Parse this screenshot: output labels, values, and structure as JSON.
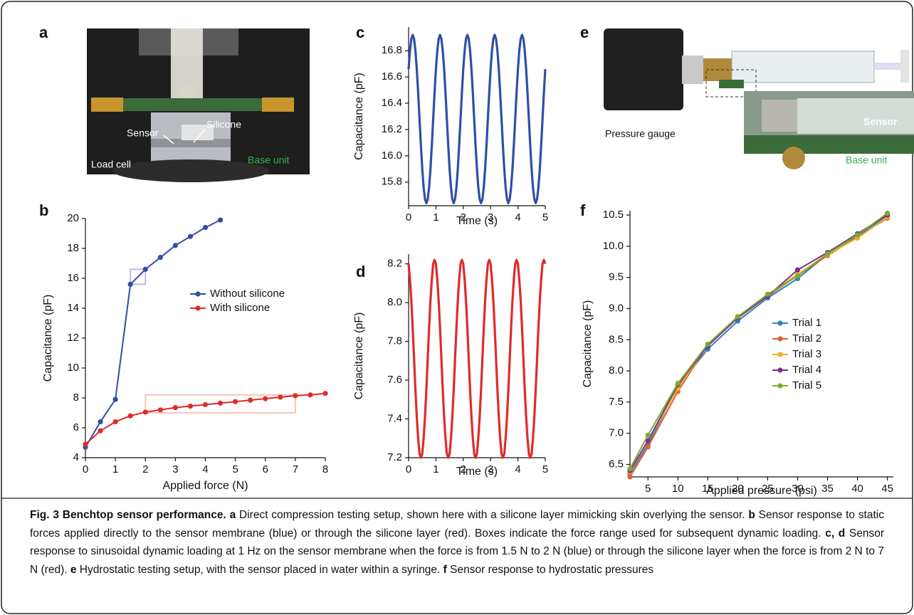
{
  "panel_labels": [
    "a",
    "b",
    "c",
    "d",
    "e",
    "f"
  ],
  "photo_a_labels": [
    "Sensor",
    "Silicone",
    "Load cell",
    "Base unit"
  ],
  "photo_e_labels": [
    "Pressure gauge",
    "Sensor",
    "Base unit"
  ],
  "chart_data": [
    {
      "type": "line",
      "marker": true,
      "xlabel": "Applied force (N)",
      "ylabel": "Capacitance (pF)",
      "xlim": [
        0,
        8
      ],
      "xticks": [
        0,
        1,
        2,
        3,
        4,
        5,
        6,
        7,
        8
      ],
      "ylim": [
        4,
        20
      ],
      "yticks": [
        4,
        6,
        8,
        10,
        12,
        14,
        16,
        18,
        20
      ],
      "legend": "center right",
      "series": [
        {
          "name": "Without silicone",
          "color": "#2f4fa6",
          "x": [
            0,
            0.5,
            1,
            1.5,
            2,
            2.5,
            3,
            3.5,
            4,
            4.5
          ],
          "values": [
            4.7,
            6.4,
            7.9,
            15.6,
            16.6,
            17.4,
            18.2,
            18.8,
            19.4,
            19.9
          ]
        },
        {
          "name": "With silicone",
          "color": "#e02a2a",
          "x": [
            0,
            0.5,
            1,
            1.5,
            2,
            2.5,
            3,
            3.5,
            4,
            4.5,
            5,
            5.5,
            6,
            6.5,
            7,
            7.5,
            8
          ],
          "values": [
            4.9,
            5.8,
            6.4,
            6.8,
            7.05,
            7.2,
            7.35,
            7.45,
            7.55,
            7.65,
            7.75,
            7.85,
            7.95,
            8.05,
            8.15,
            8.2,
            8.3
          ]
        }
      ],
      "boxes": [
        {
          "xlim": [
            1.5,
            2
          ],
          "ylim": [
            15.6,
            16.6
          ],
          "color": "#b9b9e3"
        },
        {
          "xlim": [
            2,
            7
          ],
          "ylim": [
            7,
            8.2
          ],
          "color": "#f6c5b3"
        }
      ]
    },
    {
      "type": "line",
      "marker": false,
      "xlabel": "Time (s)",
      "ylabel": "Capacitance (pF)",
      "xlim": [
        0,
        5
      ],
      "xticks": [
        0,
        1,
        2,
        3,
        4,
        5
      ],
      "ylim": [
        15.62,
        16.98
      ],
      "yticks": [
        15.8,
        {
          "value": 16,
          "label": "16.0"
        },
        16.2,
        16.4,
        16.6,
        16.8
      ],
      "series": [
        {
          "color": "#2f4fa6",
          "x": [
            0,
            0.05,
            0.1,
            0.15,
            0.2,
            0.25,
            0.3,
            0.35,
            0.4,
            0.45,
            0.5,
            0.55,
            0.6,
            0.65,
            0.7,
            0.75,
            0.8,
            0.85,
            0.9,
            0.95,
            1,
            1.05,
            1.1,
            1.15,
            1.2,
            1.25,
            1.3,
            1.35,
            1.4,
            1.45,
            1.5,
            1.55,
            1.6,
            1.65,
            1.7,
            1.75,
            1.8,
            1.85,
            1.9,
            1.95,
            2,
            2.05,
            2.1,
            2.15,
            2.2,
            2.25,
            2.3,
            2.35,
            2.4,
            2.45,
            2.5,
            2.55,
            2.6,
            2.65,
            2.7,
            2.75,
            2.8,
            2.85,
            2.9,
            2.95,
            3,
            3.05,
            3.1,
            3.15,
            3.2,
            3.25,
            3.3,
            3.35,
            3.4,
            3.45,
            3.5,
            3.55,
            3.6,
            3.65,
            3.7,
            3.75,
            3.8,
            3.85,
            3.9,
            3.95,
            4,
            4.05,
            4.1,
            4.15,
            4.2,
            4.25,
            4.3,
            4.35,
            4.4,
            4.45,
            4.5,
            4.55,
            4.6,
            4.65,
            4.7,
            4.75,
            4.8,
            4.85,
            4.9,
            4.95,
            5
          ],
          "values": [
            16.66,
            16.8,
            16.89,
            16.92,
            16.89,
            16.8,
            16.66,
            16.48,
            16.28,
            16.08,
            15.9,
            15.76,
            15.67,
            15.64,
            15.67,
            15.76,
            15.9,
            16.08,
            16.28,
            16.48,
            16.66,
            16.8,
            16.89,
            16.92,
            16.89,
            16.8,
            16.66,
            16.48,
            16.28,
            16.08,
            15.9,
            15.76,
            15.67,
            15.64,
            15.67,
            15.76,
            15.9,
            16.08,
            16.28,
            16.48,
            16.66,
            16.8,
            16.89,
            16.92,
            16.89,
            16.8,
            16.66,
            16.48,
            16.28,
            16.08,
            15.9,
            15.76,
            15.67,
            15.64,
            15.67,
            15.76,
            15.9,
            16.08,
            16.28,
            16.48,
            16.66,
            16.8,
            16.89,
            16.92,
            16.89,
            16.8,
            16.66,
            16.48,
            16.28,
            16.08,
            15.9,
            15.76,
            15.67,
            15.64,
            15.67,
            15.76,
            15.9,
            16.08,
            16.28,
            16.48,
            16.66,
            16.8,
            16.89,
            16.92,
            16.89,
            16.8,
            16.66,
            16.48,
            16.28,
            16.08,
            15.9,
            15.76,
            15.67,
            15.64,
            15.67,
            15.76,
            15.9,
            16.08,
            16.28,
            16.48,
            16.66
          ]
        }
      ]
    },
    {
      "type": "line",
      "marker": false,
      "xlabel": "Time (s)",
      "ylabel": "Capacitance (pF)",
      "xlim": [
        0,
        5
      ],
      "xticks": [
        0,
        1,
        2,
        3,
        4,
        5
      ],
      "ylim": [
        7.2,
        8.25
      ],
      "yticks": [
        7.2,
        7.4,
        7.6,
        7.8,
        {
          "value": 8,
          "label": "8.0"
        },
        8.2
      ],
      "series": [
        {
          "color": "#e02a2a",
          "x": [
            0,
            0.05,
            0.1,
            0.15,
            0.2,
            0.25,
            0.3,
            0.35,
            0.4,
            0.45,
            0.5,
            0.55,
            0.6,
            0.65,
            0.7,
            0.75,
            0.8,
            0.85,
            0.9,
            0.95,
            1,
            1.05,
            1.1,
            1.15,
            1.2,
            1.25,
            1.3,
            1.35,
            1.4,
            1.45,
            1.5,
            1.55,
            1.6,
            1.65,
            1.7,
            1.75,
            1.8,
            1.85,
            1.9,
            1.95,
            2,
            2.05,
            2.1,
            2.15,
            2.2,
            2.25,
            2.3,
            2.35,
            2.4,
            2.45,
            2.5,
            2.55,
            2.6,
            2.65,
            2.7,
            2.75,
            2.8,
            2.85,
            2.9,
            2.95,
            3,
            3.05,
            3.1,
            3.15,
            3.2,
            3.25,
            3.3,
            3.35,
            3.4,
            3.45,
            3.5,
            3.55,
            3.6,
            3.65,
            3.7,
            3.75,
            3.8,
            3.85,
            3.9,
            3.95,
            4,
            4.05,
            4.1,
            4.15,
            4.2,
            4.25,
            4.3,
            4.35,
            4.4,
            4.45,
            4.5,
            4.55,
            4.6,
            4.65,
            4.7,
            4.75,
            4.8,
            4.85,
            4.9,
            4.95,
            5
          ],
          "values": [
            8.2,
            8.12,
            8.01,
            7.87,
            7.71,
            7.55,
            7.41,
            7.3,
            7.22,
            7.2,
            7.22,
            7.3,
            7.41,
            7.55,
            7.71,
            7.87,
            8.01,
            8.12,
            8.2,
            8.22,
            8.2,
            8.12,
            8.01,
            7.87,
            7.71,
            7.55,
            7.41,
            7.3,
            7.22,
            7.2,
            7.22,
            7.3,
            7.41,
            7.55,
            7.71,
            7.87,
            8.01,
            8.12,
            8.2,
            8.22,
            8.2,
            8.12,
            8.01,
            7.87,
            7.71,
            7.55,
            7.41,
            7.3,
            7.22,
            7.2,
            7.22,
            7.3,
            7.41,
            7.55,
            7.71,
            7.87,
            8.01,
            8.12,
            8.2,
            8.22,
            8.2,
            8.12,
            8.01,
            7.87,
            7.71,
            7.55,
            7.41,
            7.3,
            7.22,
            7.2,
            7.22,
            7.3,
            7.41,
            7.55,
            7.71,
            7.87,
            8.01,
            8.12,
            8.2,
            8.22,
            8.2,
            8.12,
            8.01,
            7.87,
            7.71,
            7.55,
            7.41,
            7.3,
            7.22,
            7.2,
            7.22,
            7.3,
            7.41,
            7.55,
            7.71,
            7.87,
            8.01,
            8.12,
            8.2,
            8.22,
            8.2
          ]
        }
      ]
    },
    {
      "type": "line",
      "marker": true,
      "xlabel": "Applied pressure (psi)",
      "ylabel": "Capacitance (pF)",
      "xlim": [
        2,
        46
      ],
      "xticks": [
        5,
        10,
        15,
        20,
        25,
        30,
        35,
        40,
        45
      ],
      "ylim": [
        6.3,
        10.57
      ],
      "yticks": [
        6.5,
        {
          "value": 7,
          "label": "7.0"
        },
        7.5,
        {
          "value": 8,
          "label": "8.0"
        },
        8.5,
        {
          "value": 9,
          "label": "9.0"
        },
        9.5,
        {
          "value": 10,
          "label": "10.0"
        },
        10.5
      ],
      "legend": "center right",
      "series": [
        {
          "name": "Trial 1",
          "color": "#2f7fc1",
          "x": [
            2,
            5,
            10,
            15,
            20,
            25,
            30,
            35,
            40,
            45
          ],
          "values": [
            6.35,
            6.82,
            7.75,
            8.35,
            8.8,
            9.17,
            9.48,
            9.87,
            10.17,
            10.48
          ]
        },
        {
          "name": "Trial 2",
          "color": "#e0622a",
          "x": [
            2,
            5,
            10,
            15,
            20,
            25,
            30,
            35,
            40,
            45
          ],
          "values": [
            6.3,
            6.78,
            7.67,
            8.42,
            8.85,
            9.2,
            9.53,
            9.85,
            10.15,
            10.45
          ]
        },
        {
          "name": "Trial 3",
          "color": "#eeb420",
          "x": [
            2,
            5,
            10,
            15,
            20,
            25,
            30,
            35,
            40,
            45
          ],
          "values": [
            6.38,
            6.88,
            7.72,
            8.42,
            8.87,
            9.22,
            9.55,
            9.87,
            10.13,
            10.47
          ]
        },
        {
          "name": "Trial 4",
          "color": "#7e2f8e",
          "x": [
            2,
            5,
            10,
            15,
            20,
            25,
            30,
            35,
            40,
            45
          ],
          "values": [
            6.4,
            6.88,
            7.78,
            8.4,
            8.85,
            9.2,
            9.62,
            9.9,
            10.2,
            10.5
          ]
        },
        {
          "name": "Trial 5",
          "color": "#77ac30",
          "x": [
            2,
            5,
            10,
            15,
            20,
            25,
            30,
            35,
            40,
            45
          ],
          "values": [
            6.43,
            6.97,
            7.8,
            8.43,
            8.87,
            9.23,
            9.52,
            9.88,
            10.18,
            10.53
          ]
        }
      ]
    }
  ],
  "caption": [
    {
      "text": "Fig. 3 Benchtop sensor performance. ",
      "bold": true
    },
    {
      "text": "a",
      "bold": true
    },
    {
      "text": " Direct compression testing setup, shown here with a silicone layer mimicking skin overlying the sensor. ",
      "bold": false
    },
    {
      "text": "b",
      "bold": true
    },
    {
      "text": " Sensor response to static forces applied directly to the sensor membrane (blue) or through the silicone layer (red). Boxes indicate the force range used for subsequent dynamic loading. ",
      "bold": false
    },
    {
      "text": "c, d",
      "bold": true
    },
    {
      "text": " Sensor response to sinusoidal dynamic loading at 1 Hz on the sensor membrane when the force is from 1.5 N to 2 N (blue) or through the silicone layer when the force is from 2 N to 7 N (red). ",
      "bold": false
    },
    {
      "text": "e",
      "bold": true
    },
    {
      "text": " Hydrostatic testing setup, with the sensor placed in water within a syringe. ",
      "bold": false
    },
    {
      "text": "f",
      "bold": true
    },
    {
      "text": " Sensor response to hydrostatic pressures",
      "bold": false
    }
  ]
}
